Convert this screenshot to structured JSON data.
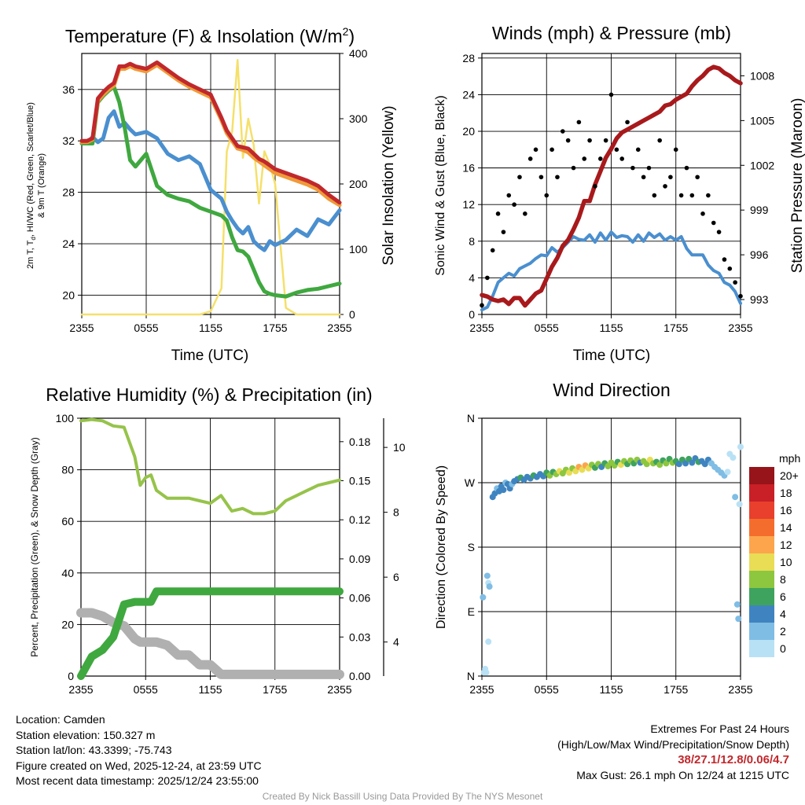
{
  "time_ticks": [
    "2355",
    "0555",
    "1155",
    "1755",
    "2355"
  ],
  "panels": {
    "temperature": {
      "title": "Temperature (F) & Insolation (W/m",
      "title_sup": "2",
      "title_end": ")",
      "ylabel_left_1": "2m T, T",
      "ylabel_left_sub": "d",
      "ylabel_left_2": ", HI/WC (Red, Green, Scarlet/Blue)",
      "ylabel_left_3": "& 9m T (Orange)",
      "ylabel_right": "Solar Insolation (Yellow)",
      "xlabel": "Time (UTC)"
    },
    "wind": {
      "title": "Winds (mph) & Pressure (mb)",
      "ylabel_left": "Sonic Wind & Gust (Blue, Black)",
      "ylabel_right": "Station Pressure (Maroon)",
      "xlabel": "Time (UTC)"
    },
    "humidity": {
      "title": "Relative Humidity (%) & Precipitation (in)",
      "ylabel_left": "Percent, Precipitation (Green), & Snow Depth (Gray)"
    },
    "direction": {
      "title": "Wind Direction",
      "ylabel_left": "Direction (Colored By Speed)",
      "colorbar_title": "mph",
      "colorbar_labels": [
        "20+",
        "18",
        "16",
        "14",
        "12",
        "10",
        "8",
        "6",
        "4",
        "2",
        "0"
      ],
      "colorbar_colors": [
        "#96141a",
        "#c82026",
        "#e8402d",
        "#f46d2c",
        "#fca54c",
        "#e8dd55",
        "#8dc63f",
        "#3ea35e",
        "#3f84c0",
        "#7fbde4",
        "#b9e1f5"
      ]
    }
  },
  "chart_data": [
    {
      "type": "line",
      "title": "Temperature (F) & Insolation (W/m2)",
      "xlabel": "Time (UTC)",
      "x_hours": [
        0,
        0.5,
        1,
        1.5,
        2,
        2.5,
        3,
        3.5,
        4,
        4.5,
        5,
        6,
        7,
        8,
        9,
        10,
        11,
        12,
        13,
        13.5,
        14,
        14.5,
        15,
        15.5,
        16,
        16.5,
        17,
        17.5,
        18,
        19,
        20,
        21,
        22,
        23,
        24
      ],
      "ylim": [
        18.5,
        38.8
      ],
      "y2lim": [
        0,
        400
      ],
      "yticks": [
        20,
        24,
        28,
        32,
        36
      ],
      "y2ticks": [
        0,
        100,
        200,
        300,
        400
      ],
      "series": [
        {
          "name": "2m T (Red)",
          "color": "#c0282c",
          "values": [
            32,
            32,
            32.2,
            35.3,
            35.8,
            36.2,
            36.5,
            37.8,
            37.8,
            38,
            37.8,
            37.6,
            38.1,
            37.5,
            36.9,
            36.4,
            36,
            35.6,
            33.8,
            32.8,
            32.2,
            31.6,
            31.5,
            31.4,
            31,
            30.6,
            30.4,
            30.1,
            29.8,
            29.5,
            29.2,
            28.9,
            28.5,
            27.8,
            27.2
          ]
        },
        {
          "name": "9m T (Orange)",
          "color": "#f09a3a",
          "values": [
            31.9,
            31.9,
            32.1,
            35.1,
            35.6,
            36,
            36.3,
            37.6,
            37.6,
            37.8,
            37.6,
            37.4,
            37.9,
            37.3,
            36.7,
            36.2,
            35.8,
            35.4,
            33.6,
            32.6,
            32,
            31.4,
            31.3,
            31.1,
            30.7,
            30.4,
            30.1,
            29.8,
            29.5,
            29.2,
            28.9,
            28.6,
            28.2,
            27.5,
            27.0
          ]
        },
        {
          "name": "Td (Green)",
          "color": "#3fa83f",
          "values": [
            31.8,
            31.8,
            31.8,
            35,
            35.5,
            35.9,
            36.2,
            35,
            33,
            30.5,
            30,
            31,
            28.5,
            27.8,
            27.5,
            27.3,
            26.8,
            26.5,
            26.2,
            25.8,
            24.5,
            23.5,
            23.4,
            23,
            22,
            21,
            20.3,
            20.1,
            20,
            19.9,
            20.2,
            20.4,
            20.5,
            20.7,
            20.9
          ]
        },
        {
          "name": "HI/WC (Blue)",
          "color": "#4a8fcf",
          "values": [
            32,
            31.8,
            32.3,
            31.9,
            32.2,
            33.8,
            34.3,
            33.1,
            33.4,
            32.9,
            32.5,
            32.7,
            32.2,
            31,
            30.5,
            30.8,
            30.2,
            28.2,
            27.5,
            26.5,
            25.8,
            25.2,
            24.8,
            25.3,
            24.2,
            23.8,
            23.5,
            24.2,
            23.9,
            24.3,
            25.1,
            24.6,
            25.9,
            25.5,
            26.6
          ]
        },
        {
          "name": "Solar Insolation (Yellow)",
          "color": "#f5e06a",
          "axis": "right",
          "values": [
            0,
            0,
            0,
            0,
            0,
            0,
            0,
            0,
            0,
            0,
            0,
            0,
            0,
            0,
            0,
            0,
            0,
            5,
            40,
            250,
            280,
            390,
            240,
            300,
            260,
            170,
            250,
            230,
            200,
            10,
            0,
            0,
            0,
            0,
            0
          ]
        }
      ]
    },
    {
      "type": "scatter+line",
      "title": "Winds (mph) & Pressure (mb)",
      "xlabel": "Time (UTC)",
      "ylim": [
        0,
        28.5
      ],
      "yticks": [
        0,
        4,
        8,
        12,
        16,
        20,
        24,
        28
      ],
      "y2lim": [
        992,
        1009.5
      ],
      "y2ticks": [
        993,
        996,
        999,
        1002,
        1005,
        1008
      ],
      "x_hours": [
        0,
        0.5,
        1,
        1.5,
        2,
        2.5,
        3,
        3.5,
        4,
        4.5,
        5,
        5.5,
        6,
        6.5,
        7,
        7.5,
        8,
        8.5,
        9,
        9.5,
        10,
        10.5,
        11,
        11.5,
        12,
        12.5,
        13,
        13.5,
        14,
        14.5,
        15,
        15.5,
        16,
        16.5,
        17,
        17.5,
        18,
        18.5,
        19,
        19.5,
        20,
        20.5,
        21,
        21.5,
        22,
        22.5,
        23,
        23.5,
        24
      ],
      "series": [
        {
          "name": "Sonic Wind (Blue)",
          "color": "#4a8fcf",
          "values": [
            0.5,
            0.8,
            2,
            3.5,
            4,
            4.5,
            4.2,
            5,
            5.3,
            5.6,
            6.1,
            6.5,
            6.4,
            7.3,
            6.8,
            7.3,
            7.9,
            8.5,
            8.2,
            8.1,
            8.7,
            7.9,
            8.9,
            8.1,
            9,
            8.4,
            8.6,
            8.5,
            7.9,
            8.7,
            8,
            8.9,
            8.4,
            8.8,
            8.1,
            8.5,
            8.1,
            8.5,
            7.2,
            6.5,
            6.5,
            6.5,
            5.4,
            4.8,
            4.5,
            3.5,
            3.2,
            2.5,
            1.2
          ]
        },
        {
          "name": "Gust (Black)",
          "color": "#000000",
          "values": [
            1,
            4,
            7,
            11,
            9,
            13,
            12,
            15,
            11,
            17,
            18,
            15,
            13,
            18,
            15,
            20,
            19,
            16,
            21,
            17,
            19,
            14,
            17,
            19,
            24,
            18,
            17,
            21,
            16,
            18,
            15,
            16,
            13,
            19,
            14,
            15,
            18,
            13,
            16,
            13,
            15,
            11,
            13,
            10,
            9,
            6,
            5,
            3.5,
            2
          ]
        },
        {
          "name": "Station Pressure (Maroon)",
          "color": "#a8191c",
          "axis": "right",
          "values": [
            993.3,
            993.2,
            993.0,
            992.9,
            993.0,
            992.7,
            993.1,
            993.1,
            992.6,
            993.0,
            993.4,
            993.6,
            994.4,
            995.2,
            995.8,
            996.6,
            997.0,
            997.7,
            998.5,
            999.6,
            999.6,
            1000.7,
            1001.6,
            1002.5,
            1003.1,
            1003.8,
            1004.2,
            1004.4,
            1004.6,
            1004.8,
            1005.0,
            1005.2,
            1005.4,
            1005.6,
            1006.0,
            1006.1,
            1006.4,
            1006.6,
            1006.8,
            1007.3,
            1007.7,
            1008.0,
            1008.4,
            1008.6,
            1008.5,
            1008.2,
            1008.0,
            1007.7,
            1007.5
          ]
        }
      ]
    },
    {
      "type": "line",
      "title": "Relative Humidity (%) & Precipitation (in)",
      "ylim": [
        0,
        100
      ],
      "yticks": [
        0,
        20,
        40,
        60,
        80,
        100
      ],
      "precip_ticks": [
        "0.00",
        "0.03",
        "0.06",
        "0.09",
        "0.12",
        "0.15",
        "0.18"
      ],
      "precip_lim": [
        0,
        0.198
      ],
      "snow_ticks": [
        "4",
        "6",
        "8",
        "10"
      ],
      "snow_lim": [
        2.95,
        10.9
      ],
      "x_hours": [
        0,
        1,
        2,
        3,
        4,
        5,
        5.5,
        6,
        6.5,
        7,
        8,
        9,
        10,
        11,
        12,
        13,
        14,
        15,
        16,
        17,
        18,
        19,
        20,
        21,
        22,
        23,
        24
      ],
      "series": [
        {
          "name": "Relative Humidity (Light Green)",
          "color": "#96c34a",
          "values": [
            99,
            99.5,
            99,
            97,
            96.5,
            85,
            74,
            77,
            78,
            72,
            69,
            69,
            69,
            68,
            67,
            70,
            64,
            65,
            63,
            63,
            64,
            68,
            70,
            72,
            74,
            75,
            76
          ]
        },
        {
          "name": "Precipitation (Green)",
          "color": "#3fa83f",
          "axis": "precip",
          "values": [
            0,
            0.015,
            0.02,
            0.03,
            0.055,
            0.057,
            0.057,
            0.057,
            0.057,
            0.065,
            0.065,
            0.065,
            0.065,
            0.065,
            0.065,
            0.065,
            0.065,
            0.065,
            0.065,
            0.065,
            0.065,
            0.065,
            0.065,
            0.065,
            0.065,
            0.065,
            0.065
          ]
        },
        {
          "name": "Snow Depth (Gray)",
          "color": "#b0b0b0",
          "axis": "snow",
          "values": [
            4.9,
            4.9,
            4.8,
            4.6,
            4.5,
            4.1,
            4,
            4,
            4,
            4,
            3.9,
            3.6,
            3.6,
            3.3,
            3.3,
            3,
            3,
            3,
            3,
            3,
            3,
            3,
            3,
            3,
            3,
            3,
            3
          ]
        }
      ]
    },
    {
      "type": "scatter",
      "title": "Wind Direction",
      "ylabel": "Direction (Colored By Speed)",
      "ylim": [
        0,
        360
      ],
      "y_categories": [
        "N",
        "E",
        "S",
        "W",
        "N"
      ],
      "y_values": [
        0,
        90,
        180,
        270,
        360
      ],
      "points": [
        [
          0.2,
          5,
          1
        ],
        [
          0.3,
          10,
          1
        ],
        [
          0.1,
          110,
          2
        ],
        [
          0.4,
          5,
          1
        ],
        [
          0.5,
          140,
          2
        ],
        [
          0.6,
          130,
          1
        ],
        [
          0.7,
          125,
          2
        ],
        [
          0.6,
          48,
          1
        ],
        [
          1.0,
          250,
          4
        ],
        [
          1.2,
          255,
          4
        ],
        [
          1.4,
          262,
          3
        ],
        [
          1.6,
          258,
          4
        ],
        [
          1.8,
          265,
          5
        ],
        [
          2.0,
          260,
          4
        ],
        [
          2.2,
          270,
          3
        ],
        [
          2.4,
          268,
          4
        ],
        [
          2.6,
          262,
          4
        ],
        [
          2.8,
          268,
          3
        ],
        [
          3.0,
          272,
          5
        ],
        [
          3.3,
          275,
          4
        ],
        [
          3.6,
          277,
          6
        ],
        [
          3.9,
          274,
          4
        ],
        [
          4.2,
          278,
          5
        ],
        [
          4.5,
          276,
          4
        ],
        [
          4.8,
          280,
          6
        ],
        [
          5.1,
          278,
          4
        ],
        [
          5.4,
          282,
          5
        ],
        [
          5.7,
          279,
          4
        ],
        [
          6.0,
          284,
          6
        ],
        [
          6.3,
          280,
          8
        ],
        [
          6.6,
          285,
          6
        ],
        [
          6.9,
          282,
          9
        ],
        [
          7.2,
          286,
          10
        ],
        [
          7.5,
          283,
          9
        ],
        [
          7.8,
          288,
          8
        ],
        [
          8.1,
          284,
          11
        ],
        [
          8.4,
          290,
          9
        ],
        [
          8.7,
          286,
          10
        ],
        [
          9.0,
          292,
          12
        ],
        [
          9.3,
          288,
          10
        ],
        [
          9.6,
          294,
          13
        ],
        [
          9.9,
          290,
          11
        ],
        [
          10.2,
          295,
          8
        ],
        [
          10.5,
          291,
          6
        ],
        [
          10.8,
          296,
          8
        ],
        [
          11.1,
          292,
          4
        ],
        [
          11.4,
          297,
          6
        ],
        [
          11.7,
          293,
          8
        ],
        [
          12.0,
          298,
          9
        ],
        [
          12.3,
          294,
          8
        ],
        [
          12.6,
          299,
          6
        ],
        [
          12.9,
          295,
          10
        ],
        [
          13.2,
          300,
          8
        ],
        [
          13.5,
          296,
          6
        ],
        [
          13.8,
          301,
          9
        ],
        [
          14.1,
          297,
          7
        ],
        [
          14.4,
          302,
          8
        ],
        [
          14.7,
          298,
          5
        ],
        [
          15.0,
          300,
          8
        ],
        [
          15.3,
          296,
          9
        ],
        [
          15.6,
          302,
          10
        ],
        [
          15.9,
          297,
          8
        ],
        [
          16.2,
          299,
          6
        ],
        [
          16.5,
          295,
          8
        ],
        [
          16.8,
          301,
          7
        ],
        [
          17.1,
          297,
          9
        ],
        [
          17.4,
          303,
          6
        ],
        [
          17.7,
          298,
          8
        ],
        [
          18.0,
          300,
          6
        ],
        [
          18.3,
          296,
          5
        ],
        [
          18.6,
          302,
          7
        ],
        [
          18.9,
          297,
          5
        ],
        [
          19.2,
          303,
          6
        ],
        [
          19.5,
          298,
          4
        ],
        [
          19.8,
          304,
          5
        ],
        [
          20.1,
          299,
          6
        ],
        [
          20.4,
          300,
          5
        ],
        [
          20.7,
          296,
          4
        ],
        [
          21.0,
          302,
          4
        ],
        [
          21.3,
          297,
          3
        ],
        [
          21.6,
          292,
          3
        ],
        [
          21.9,
          288,
          2
        ],
        [
          22.2,
          284,
          2
        ],
        [
          22.5,
          280,
          2
        ],
        [
          22.8,
          285,
          1
        ],
        [
          23.0,
          310,
          1
        ],
        [
          23.3,
          305,
          1
        ],
        [
          23.5,
          250,
          2
        ],
        [
          23.7,
          100,
          2
        ],
        [
          23.8,
          80,
          3
        ],
        [
          23.9,
          240,
          1
        ],
        [
          24.0,
          320,
          1
        ]
      ]
    }
  ],
  "footer": {
    "location": "Location: Camden",
    "elevation": "Station elevation: 150.327 m",
    "latlon": "Station lat/lon: 43.3399; -75.743",
    "created": "Figure created on Wed, 2025-12-24, at 23:59 UTC",
    "recent": "Most recent data timestamp: 2025/12/24 23:55:00",
    "extremes_title": "Extremes For Past 24 Hours",
    "extremes_sub": "(High/Low/Max Wind/Precipitation/Snow Depth)",
    "extremes_values": "38/27.1/12.8/0.06/4.7",
    "max_gust": "Max Gust: 26.1 mph On 12/24 at 1215 UTC"
  },
  "credit": "Created By Nick Bassill Using Data Provided By The NYS Mesonet"
}
